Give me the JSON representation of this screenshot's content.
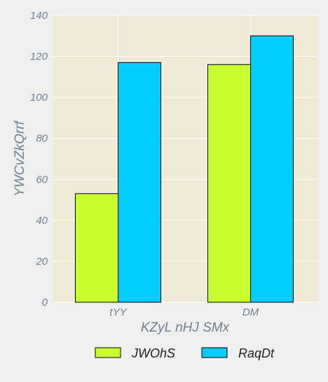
{
  "chart_data": {
    "type": "bar",
    "title": "",
    "xlabel": "KZyL nHJ SMx",
    "ylabel": "YWCvZkQrrf",
    "categories": [
      "tYY",
      "DM"
    ],
    "series": [
      {
        "name": "JWOhS",
        "values": [
          53,
          116
        ],
        "color": "#c8ff2e"
      },
      {
        "name": "RaqDt",
        "values": [
          117,
          130
        ],
        "color": "#00ccff"
      }
    ],
    "ylim": [
      0,
      140
    ],
    "yticks": [
      0,
      20,
      40,
      60,
      80,
      100,
      120,
      140
    ],
    "grid": true,
    "legend_position": "bottom"
  },
  "colors": {
    "plot_background": "#f0e9d6",
    "grid": "#ffffff",
    "bar_edge": "#000000",
    "text": "#6f7f8f"
  }
}
